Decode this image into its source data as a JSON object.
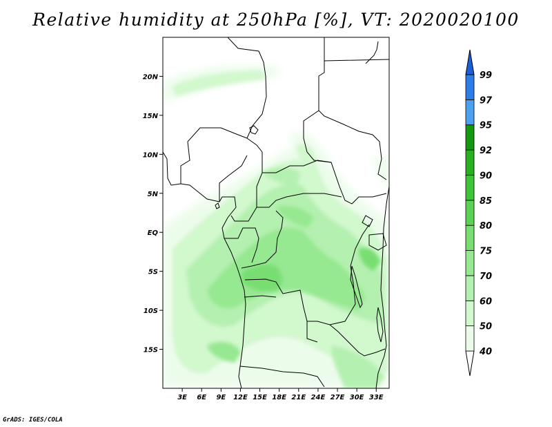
{
  "title": "Relative humidity at 250hPa [%], VT: 2020020100",
  "credit": "GrADS: IGES/COLA",
  "map": {
    "lon_range": [
      0,
      35
    ],
    "lat_range": [
      -20,
      25
    ],
    "lat_ticks": [
      {
        "label": "20N",
        "value": 20
      },
      {
        "label": "15N",
        "value": 15
      },
      {
        "label": "10N",
        "value": 10
      },
      {
        "label": "5N",
        "value": 5
      },
      {
        "label": "EQ",
        "value": 0
      },
      {
        "label": "5S",
        "value": -5
      },
      {
        "label": "10S",
        "value": -10
      },
      {
        "label": "15S",
        "value": -15
      }
    ],
    "lon_ticks": [
      {
        "label": "3E",
        "value": 3
      },
      {
        "label": "6E",
        "value": 6
      },
      {
        "label": "9E",
        "value": 9
      },
      {
        "label": "12E",
        "value": 12
      },
      {
        "label": "15E",
        "value": 15
      },
      {
        "label": "18E",
        "value": 18
      },
      {
        "label": "21E",
        "value": 21
      },
      {
        "label": "24E",
        "value": 24
      },
      {
        "label": "27E",
        "value": 27
      },
      {
        "label": "30E",
        "value": 30
      },
      {
        "label": "33E",
        "value": 33
      }
    ]
  },
  "colorbar": {
    "levels": [
      "40",
      "50",
      "60",
      "70",
      "75",
      "80",
      "85",
      "90",
      "92",
      "95",
      "97",
      "99"
    ],
    "colors": [
      "#ecfceb",
      "#d2f8ce",
      "#b4f0b0",
      "#96e891",
      "#78de72",
      "#5ad254",
      "#3ec437",
      "#28b11f",
      "#149810",
      "#4ba0f0",
      "#2b7de8",
      "#1c5fd8"
    ]
  }
}
